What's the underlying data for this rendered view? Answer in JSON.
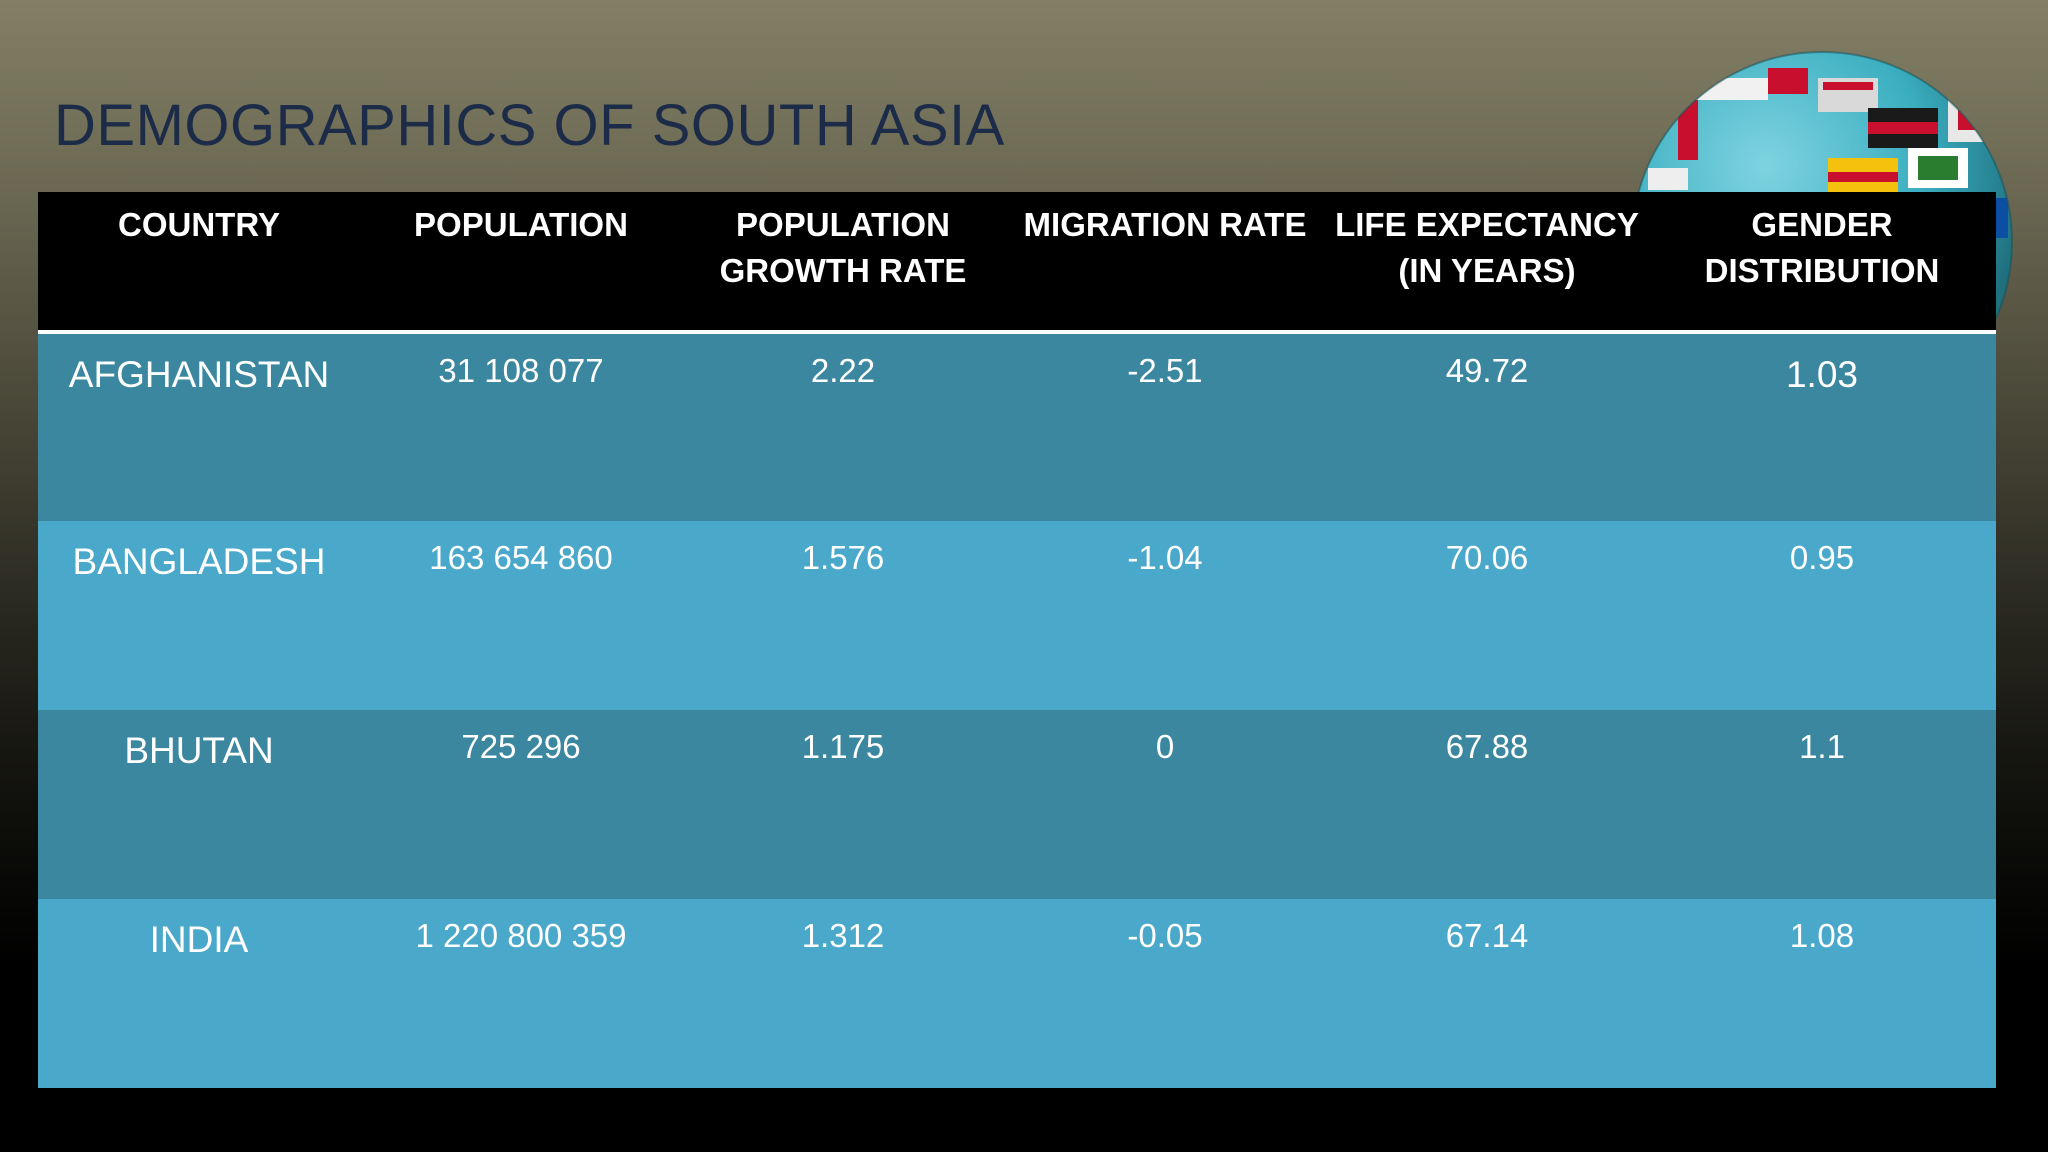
{
  "slide": {
    "title": "DEMOGRAPHICS OF SOUTH ASIA",
    "colors": {
      "title": "#1c2b47",
      "header_bg": "#000000",
      "row_dark": "#3b87a0",
      "row_light": "#4aa8ca",
      "text": "#ffffff"
    },
    "decoration": "globe-with-flags-image"
  },
  "table": {
    "headers": [
      [
        "COUNTRY"
      ],
      [
        "POPULATION"
      ],
      [
        "POPULATION",
        "GROWTH RATE"
      ],
      [
        "MIGRATION RATE"
      ],
      [
        "LIFE EXPECTANCY",
        "(IN YEARS)"
      ],
      [
        "GENDER",
        "DISTRIBUTION"
      ]
    ],
    "rows": [
      [
        "AFGHANISTAN",
        "31 108 077",
        "2.22",
        "-2.51",
        "49.72",
        "1.03"
      ],
      [
        "BANGLADESH",
        "163 654 860",
        "1.576",
        "-1.04",
        "70.06",
        "0.95"
      ],
      [
        "BHUTAN",
        "725 296",
        "1.175",
        "0",
        "67.88",
        "1.1"
      ],
      [
        "INDIA",
        "1 220 800 359",
        "1.312",
        "-0.05",
        "67.14",
        "1.08"
      ]
    ]
  }
}
